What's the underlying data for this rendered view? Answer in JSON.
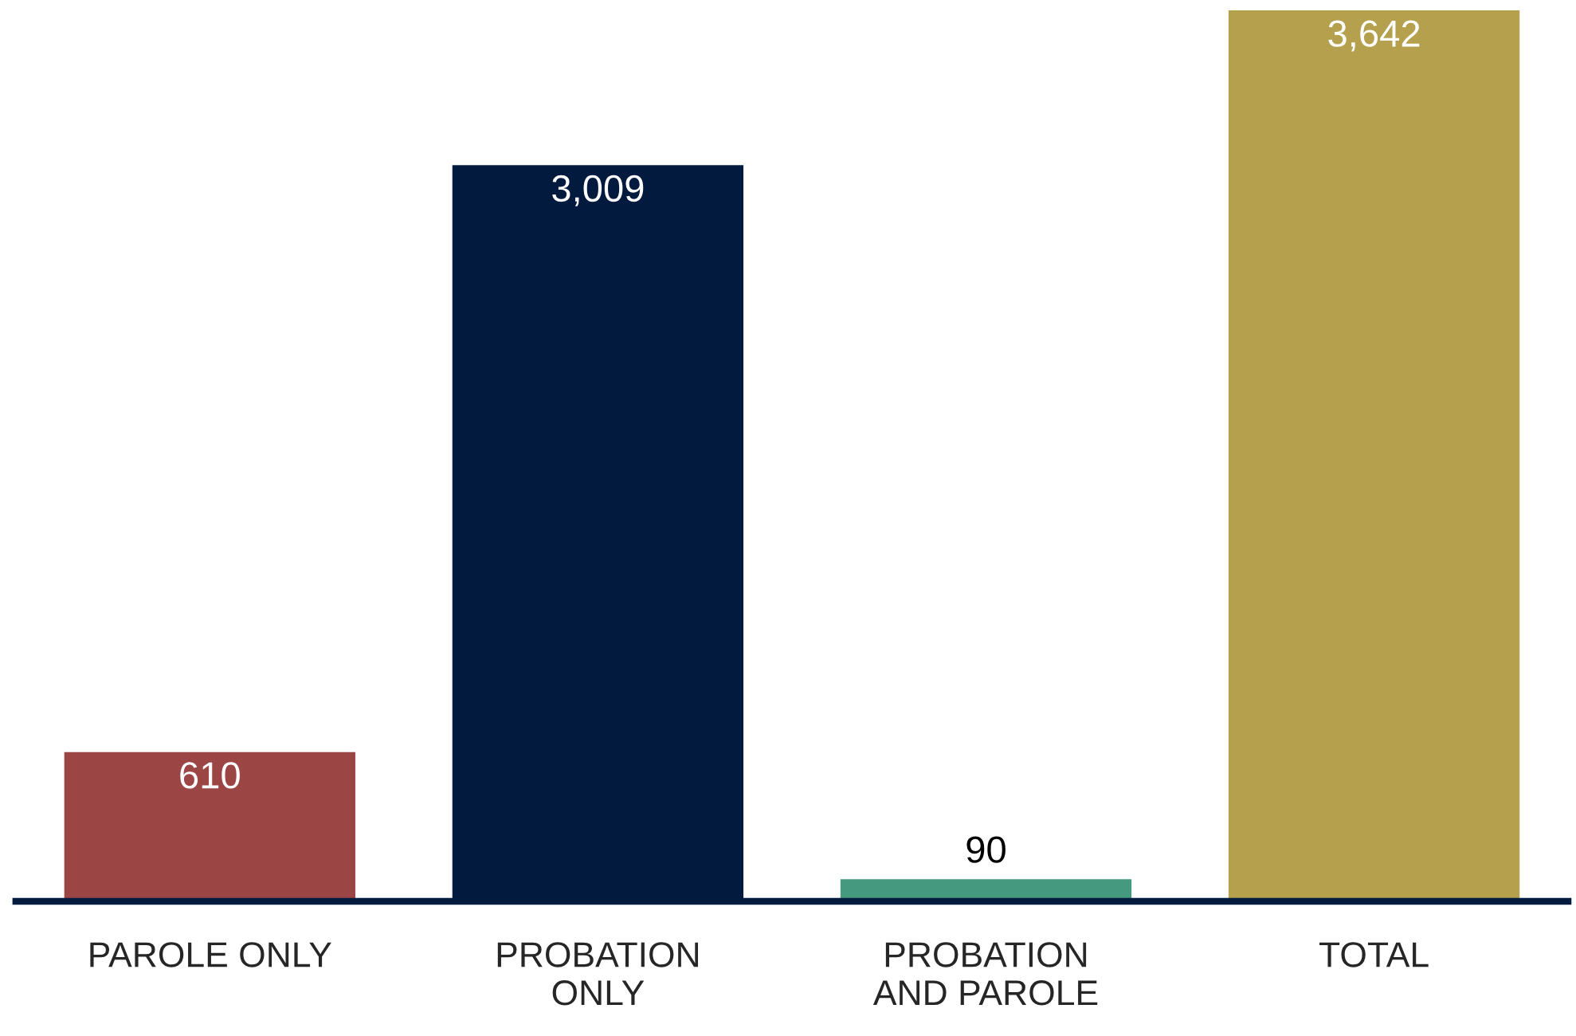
{
  "chart_data": {
    "type": "bar",
    "categories": [
      "PAROLE ONLY",
      "PROBATION\nONLY",
      "PROBATION\nAND PAROLE",
      "TOTAL"
    ],
    "values": [
      610,
      3009,
      90,
      3642
    ],
    "colors": [
      "#9b4545",
      "#011a3e",
      "#45997f",
      "#b5a04e"
    ],
    "value_labels": [
      "610",
      "3,009",
      "90",
      "3,642"
    ],
    "grid": false,
    "legend": false
  }
}
